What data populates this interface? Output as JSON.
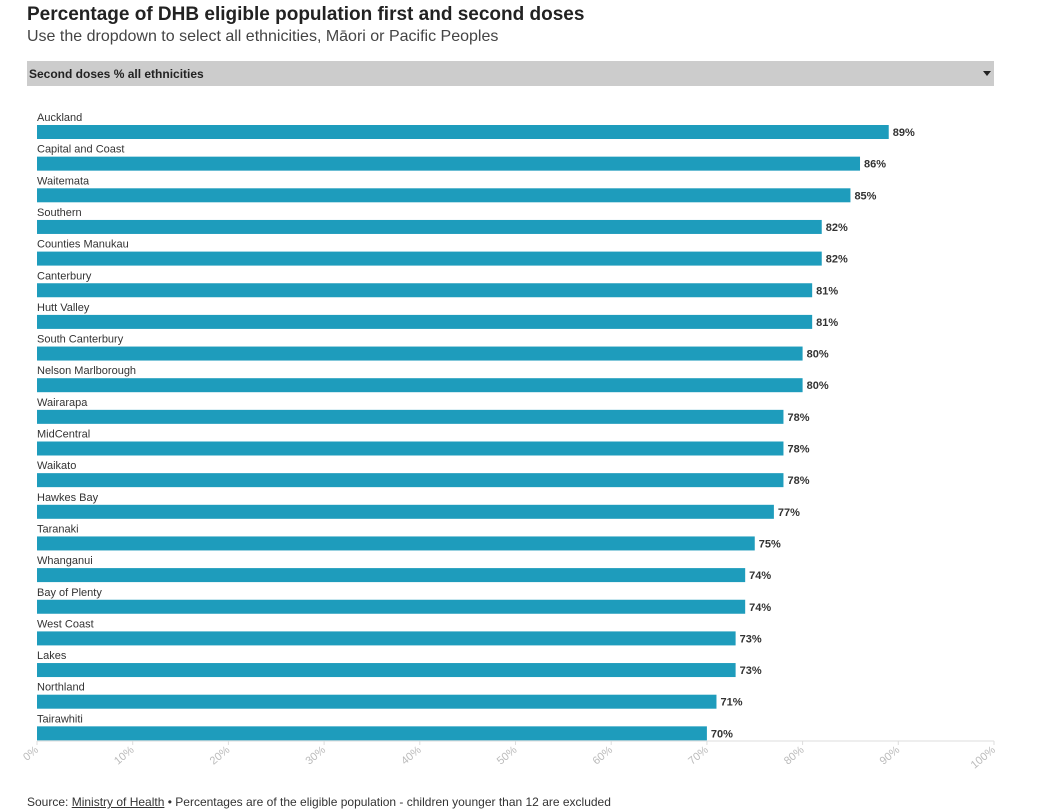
{
  "header": {
    "title": "Percentage of DHB eligible population first and second doses",
    "subtitle": "Use the dropdown to select all ethnicities, Māori or Pacific Peoples"
  },
  "dropdown": {
    "selected": "Second doses % all ethnicities",
    "icon": "caret-down-icon"
  },
  "colors": {
    "bar": "#1e9cbc",
    "tick_text": "#bbbbbb",
    "axis_line": "#dddddd",
    "label_text": "#333333"
  },
  "chart_data": {
    "type": "bar",
    "orientation": "horizontal",
    "title": "Percentage of DHB eligible population first and second doses",
    "subtitle": "Use the dropdown to select all ethnicities, Māori or Pacific Peoples",
    "series_name": "Second doses % all ethnicities",
    "categories": [
      "Auckland",
      "Capital and Coast",
      "Waitemata",
      "Southern",
      "Counties Manukau",
      "Canterbury",
      "Hutt Valley",
      "South Canterbury",
      "Nelson Marlborough",
      "Wairarapa",
      "MidCentral",
      "Waikato",
      "Hawkes Bay",
      "Taranaki",
      "Whanganui",
      "Bay of Plenty",
      "West Coast",
      "Lakes",
      "Northland",
      "Tairawhiti"
    ],
    "values": [
      89,
      86,
      85,
      82,
      82,
      81,
      81,
      80,
      80,
      78,
      78,
      78,
      77,
      75,
      74,
      74,
      73,
      73,
      71,
      70
    ],
    "value_labels": [
      "89%",
      "86%",
      "85%",
      "82%",
      "82%",
      "81%",
      "81%",
      "80%",
      "80%",
      "78%",
      "78%",
      "78%",
      "77%",
      "75%",
      "74%",
      "74%",
      "73%",
      "73%",
      "71%",
      "70%"
    ],
    "xlim": [
      0,
      100
    ],
    "x_ticks": [
      0,
      10,
      20,
      30,
      40,
      50,
      60,
      70,
      80,
      90,
      100
    ],
    "x_tick_labels": [
      "0%",
      "10%",
      "20%",
      "30%",
      "40%",
      "50%",
      "60%",
      "70%",
      "80%",
      "90%",
      "100%"
    ],
    "xlabel": "",
    "ylabel": "",
    "grid": false,
    "legend": "none"
  },
  "footer": {
    "source_prefix": "Source: ",
    "source_link": "Ministry of Health",
    "source_note": " • Percentages are of the eligible population - children younger than 12 are excluded"
  }
}
